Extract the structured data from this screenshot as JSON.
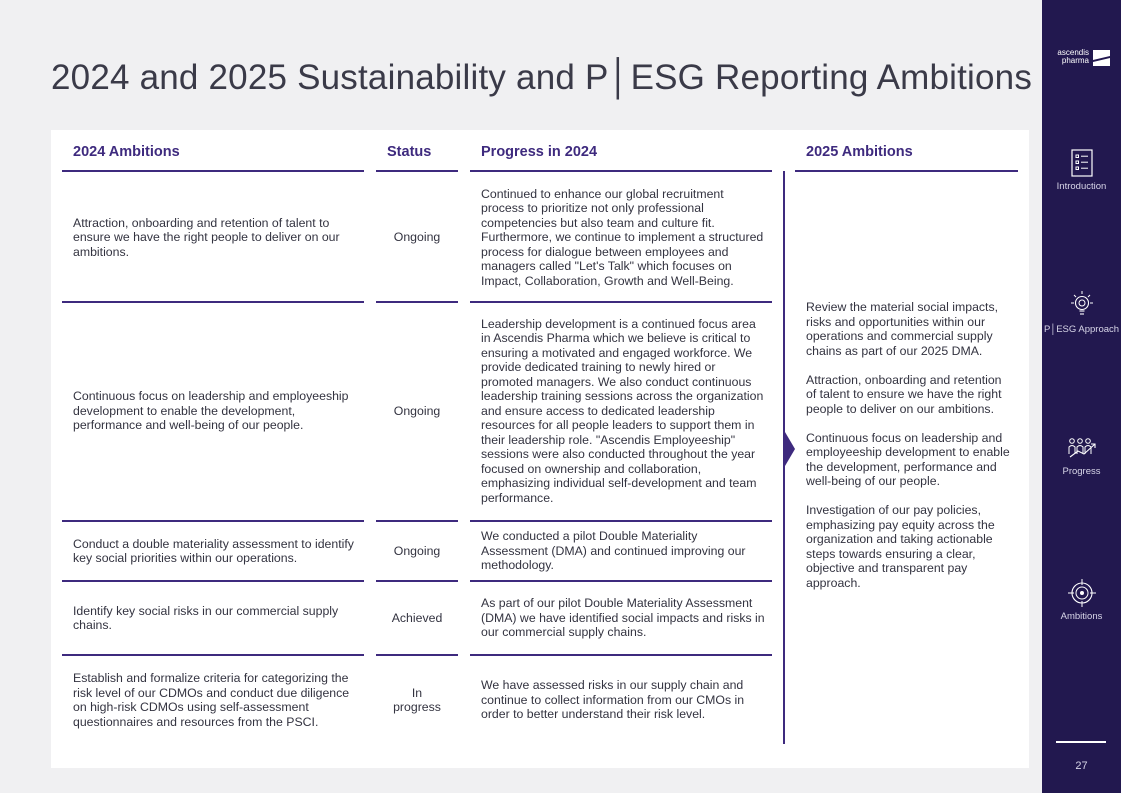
{
  "page": {
    "title": "2024 and 2025 Sustainability and P│ESG Reporting Ambitions",
    "page_number": "27"
  },
  "table": {
    "headers": {
      "ambitions_2024": "2024 Ambitions",
      "status": "Status",
      "progress_2024": "Progress in 2024",
      "ambitions_2025": "2025 Ambitions"
    },
    "rows": [
      {
        "ambition": "Attraction, onboarding and retention of talent to ensure we have the right people to deliver on our ambitions.",
        "status": "Ongoing",
        "progress": "Continued to enhance our global recruitment process to prioritize not only professional competencies but also team and culture fit. Furthermore, we continue to implement a structured process for dialogue between employees and managers called \"Let's Talk\" which focuses on Impact, Collaboration, Growth and Well-Being."
      },
      {
        "ambition": "Continuous focus on leadership and employeeship development to enable the development, performance and well-being of our people.",
        "status": "Ongoing",
        "progress": "Leadership development is a continued focus area in Ascendis Pharma which we believe is critical to ensuring a motivated and engaged workforce. We provide dedicated training to newly hired or promoted managers. We also conduct continuous leadership training sessions across the organization and ensure access to dedicated leadership resources for all people leaders to support them in their leadership role. \"Ascendis Employeeship\" sessions were also conducted throughout the year focused on ownership and collaboration, emphasizing individual self-development and team performance."
      },
      {
        "ambition": "Conduct a double materiality assessment to identify key social priorities within our operations.",
        "status": "Ongoing",
        "progress": "We conducted a pilot Double Materiality Assessment (DMA) and continued improving our methodology."
      },
      {
        "ambition": "Identify key social risks in our commercial supply chains.",
        "status": "Achieved",
        "progress": "As part of our pilot Double Materiality Assessment (DMA) we have identified social impacts and risks in our commercial supply chains."
      },
      {
        "ambition": "Establish and formalize criteria for categorizing the risk level of our CDMOs and conduct due diligence on high-risk CDMOs using self-assessment questionnaires and resources from the PSCI.",
        "status": "In progress",
        "progress": "We have assessed risks in our supply chain and continue to collect information from our CMOs in order to better understand their risk level."
      }
    ],
    "ambitions_2025": [
      "Review the material social impacts, risks and opportunities within our operations and commercial supply chains as part of our 2025 DMA.",
      "Attraction, onboarding and retention of talent to ensure we have the right people to deliver on our ambitions.",
      "Continuous focus on leadership and employeeship development to enable the development, performance and well-being of our people.",
      "Investigation of our pay policies, emphasizing pay equity across the organization and taking actionable steps towards ensuring a clear, objective and transparent pay approach."
    ]
  },
  "sidebar": {
    "logo_line1": "ascendis",
    "logo_line2": "pharma",
    "nav": [
      {
        "label": "Introduction",
        "icon": "list-icon"
      },
      {
        "label": "P│ESG Approach",
        "icon": "lightbulb-icon"
      },
      {
        "label": "Progress",
        "icon": "progress-people-icon"
      },
      {
        "label": "Ambitions",
        "icon": "target-icon"
      }
    ]
  },
  "colors": {
    "accent": "#3e2a7e",
    "sidebar_bg": "#22184f",
    "page_bg": "#f0f0f2"
  }
}
